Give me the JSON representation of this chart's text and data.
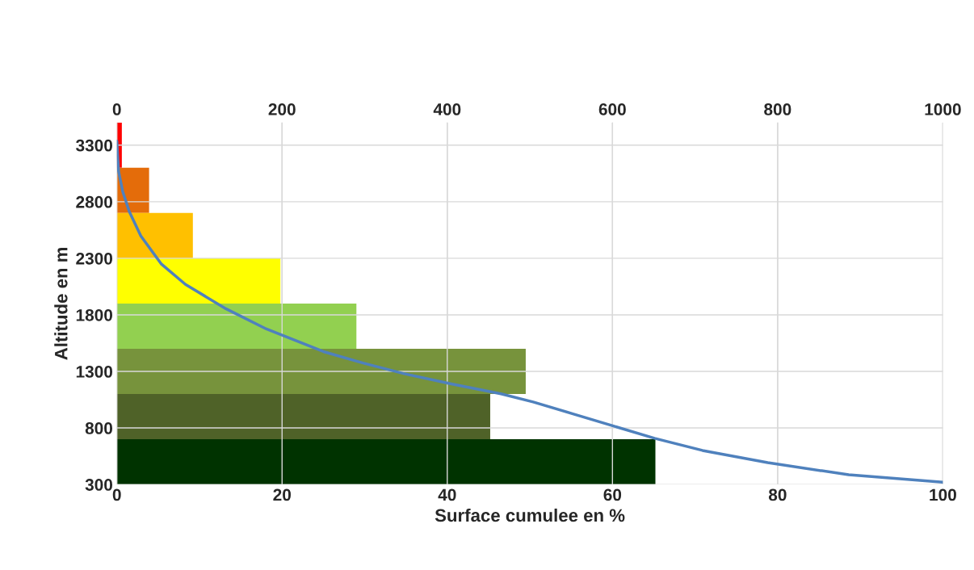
{
  "chart_data": [
    {
      "type": "line",
      "xlabel": "Surface cumulee en %",
      "ylabel": "Altitude en m",
      "xlim": [
        0,
        100
      ],
      "xticks": [
        0,
        20,
        40,
        60,
        80,
        100
      ],
      "ylim": [
        300,
        3500
      ],
      "yticks": [
        300,
        800,
        1300,
        1800,
        2300,
        2800,
        3300
      ],
      "grid": true,
      "series": [
        {
          "color": "#4f81bd",
          "x": [
            0,
            0.2,
            0.7,
            1.5,
            2.9,
            5.4,
            8.3,
            13.2,
            18.1,
            25.0,
            29.8,
            34.7,
            40.6,
            46.5,
            50.4,
            55.3,
            60.2,
            65.1,
            70.9,
            78.8,
            88.6,
            100
          ],
          "values": [
            3336,
            3071,
            2892,
            2713,
            2498,
            2248,
            2069,
            1854,
            1675,
            1475,
            1374,
            1281,
            1188,
            1102,
            1030,
            923,
            815,
            708,
            601,
            493,
            386,
            321
          ]
        }
      ]
    },
    {
      "type": "bar",
      "orientation": "horizontal",
      "categories": [
        null,
        null,
        null,
        null,
        null,
        null,
        null,
        null
      ],
      "xlim": [
        0,
        1000
      ],
      "xticks": [
        0,
        200,
        400,
        600,
        800,
        1000
      ],
      "grid": "x",
      "colors": [
        "#ff0000",
        "#e46c0a",
        "#ffc000",
        "#ffff00",
        "#92d050",
        "#77933c",
        "#4f6228",
        "#003300"
      ],
      "values": [
        6,
        39,
        92,
        198,
        290,
        495,
        452,
        652
      ]
    }
  ]
}
